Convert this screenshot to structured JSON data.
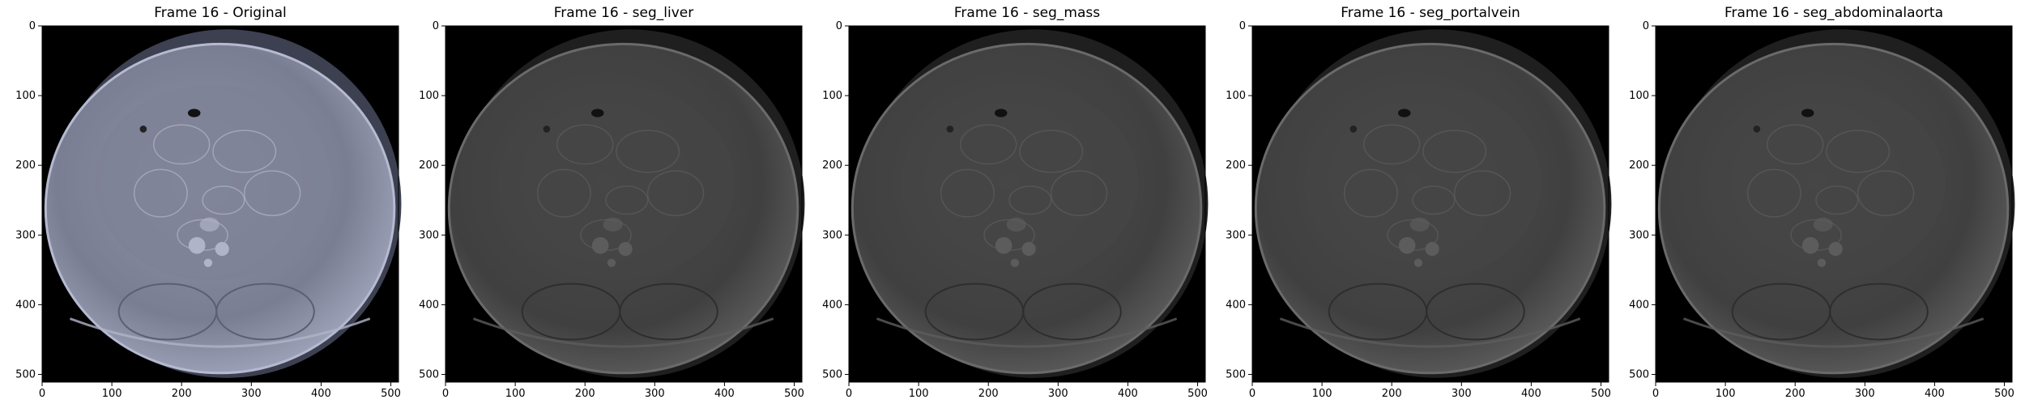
{
  "panels": [
    {
      "title": "Frame 16 - Original",
      "tone": "#7d8196",
      "tint": "blue"
    },
    {
      "title": "Frame 16 - seg_liver",
      "tone": "#444444",
      "tint": "gray"
    },
    {
      "title": "Frame 16 - seg_mass",
      "tone": "#444444",
      "tint": "gray"
    },
    {
      "title": "Frame 16 - seg_portalvein",
      "tone": "#444444",
      "tint": "gray"
    },
    {
      "title": "Frame 16 - seg_abdominalaorta",
      "tone": "#444444",
      "tint": "gray"
    }
  ],
  "axes": {
    "x_ticks": [
      "0",
      "100",
      "200",
      "300",
      "400",
      "500"
    ],
    "y_ticks": [
      "0",
      "100",
      "200",
      "300",
      "400",
      "500"
    ],
    "range": [
      0,
      511
    ]
  },
  "colors": {
    "background": "#ffffff",
    "image_bg": "#000000",
    "original_tissue": "#7d8196",
    "seg_tissue": "#444444"
  }
}
